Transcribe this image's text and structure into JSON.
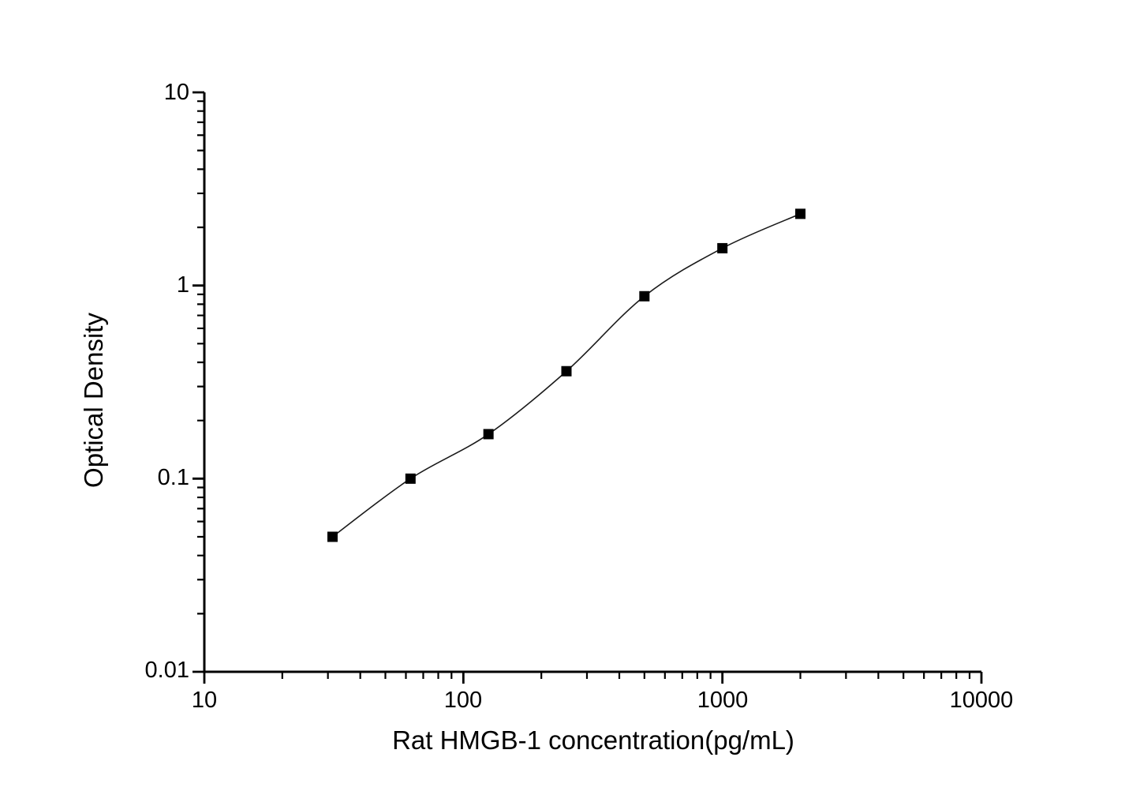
{
  "figure": {
    "background": "#ffffff",
    "line_color": "#000000",
    "marker_color": "#000000",
    "curve_color": "#1a1a1a"
  },
  "chart_data": {
    "type": "scatter",
    "title": "",
    "xlabel": "Rat HMGB-1 concentration(pg/mL)",
    "ylabel": "Optical Density",
    "xscale": "log",
    "yscale": "log",
    "xlim": [
      10,
      10000
    ],
    "ylim": [
      0.01,
      10
    ],
    "x_ticks": [
      10,
      100,
      1000,
      10000
    ],
    "y_ticks": [
      10,
      1,
      0.1,
      0.01
    ],
    "x_tick_labels": [
      "10",
      "100",
      "1000",
      "10000"
    ],
    "y_tick_labels": [
      "10",
      "1",
      "0.1",
      "0.01"
    ],
    "grid": false,
    "legend": "none",
    "series": [
      {
        "name": "standard-curve",
        "marker": "filled-square",
        "marker_size": 13,
        "color": "#000000",
        "line": "smooth-fit",
        "x": [
          31.25,
          62.5,
          125,
          250,
          500,
          1000,
          2000
        ],
        "y": [
          0.05,
          0.1,
          0.17,
          0.36,
          0.88,
          1.56,
          2.35
        ]
      }
    ]
  }
}
